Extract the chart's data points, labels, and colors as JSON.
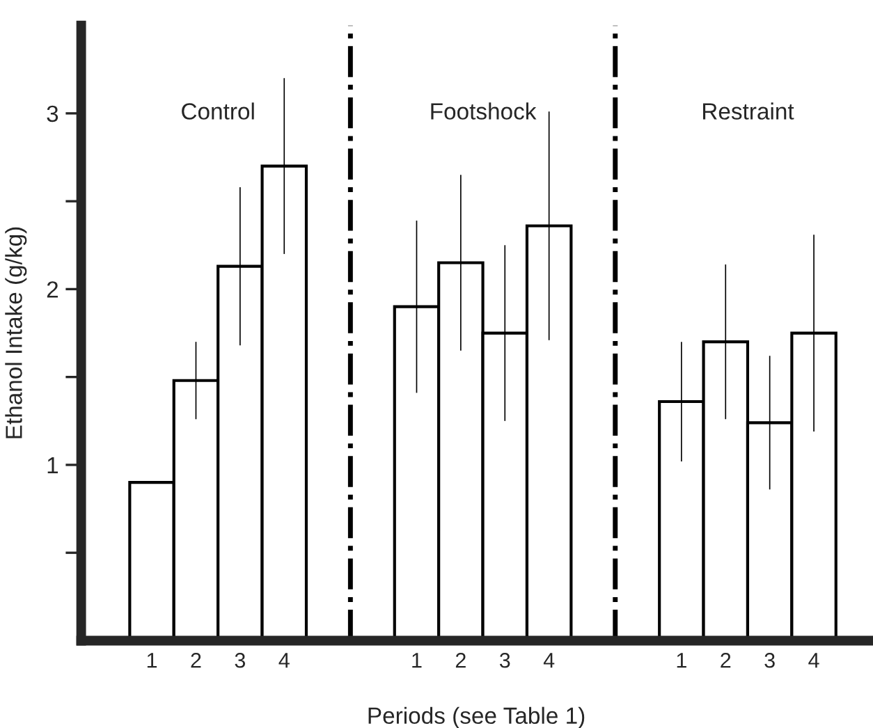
{
  "chart_data": {
    "type": "bar",
    "xlabel": "Periods (see Table 1)",
    "ylabel": "Ethanol Intake (g/kg)",
    "categories": [
      null,
      "1",
      "2",
      "3",
      "4",
      null,
      null,
      "1",
      "2",
      "3",
      "4",
      null,
      null,
      "1",
      "2",
      "3",
      "4"
    ],
    "series": [
      {
        "color": "#ffffff",
        "values": [
          null,
          0.9,
          1.48,
          2.13,
          2.7,
          null,
          null,
          1.9,
          2.15,
          1.75,
          2.36,
          null,
          null,
          1.36,
          1.7,
          1.24,
          1.75
        ],
        "errors": [
          null,
          null,
          0.22,
          0.45,
          0.5,
          null,
          null,
          0.49,
          0.5,
          0.5,
          0.65,
          null,
          null,
          0.34,
          0.44,
          0.38,
          0.56
        ]
      }
    ],
    "ylim": [
      0,
      3.5
    ],
    "yticks": [
      {
        "value": 0.5,
        "label": null
      },
      1,
      {
        "value": 1.5,
        "label": null
      },
      2,
      {
        "value": 2.5,
        "label": null
      },
      3
    ],
    "annotations": [
      "Control",
      "Footshock",
      "Restraint"
    ],
    "grid": false,
    "legend": false
  }
}
